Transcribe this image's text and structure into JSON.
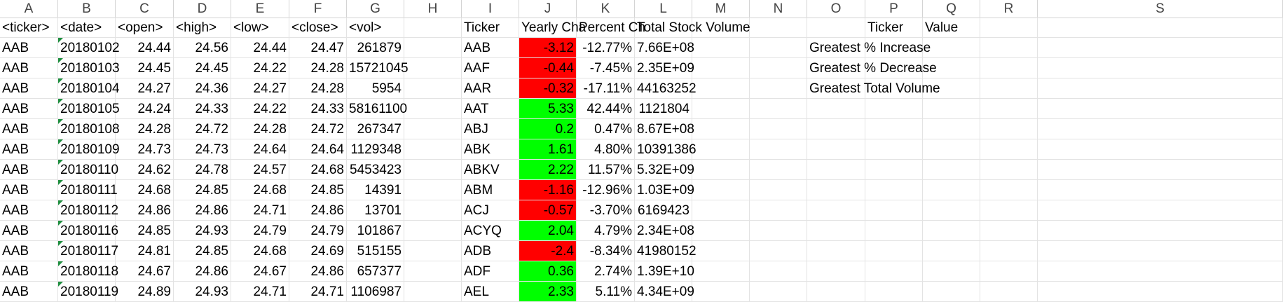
{
  "sheet": {
    "column_letters": [
      "A",
      "B",
      "C",
      "D",
      "E",
      "F",
      "G",
      "H",
      "I",
      "J",
      "K",
      "L",
      "M",
      "N",
      "O",
      "P",
      "Q",
      "R",
      "S"
    ],
    "headers": {
      "ticker": "<ticker>",
      "date": "<date>",
      "open": "<open>",
      "high": "<high>",
      "low": "<low>",
      "close": "<close>",
      "vol": "<vol>",
      "summary_ticker": "Ticker",
      "yearly_change": "Yearly Cha",
      "percent_change": "Percent Ch",
      "total_volume": "Total Stock Volume",
      "greatest_ticker": "Ticker",
      "greatest_value": "Value"
    },
    "raw_rows": [
      [
        "AAB",
        "20180102",
        "24.44",
        "24.56",
        "24.44",
        "24.47",
        "261879"
      ],
      [
        "AAB",
        "20180103",
        "24.45",
        "24.45",
        "24.22",
        "24.28",
        "15721045"
      ],
      [
        "AAB",
        "20180104",
        "24.27",
        "24.36",
        "24.27",
        "24.28",
        "5954"
      ],
      [
        "AAB",
        "20180105",
        "24.24",
        "24.33",
        "24.22",
        "24.33",
        "58161100"
      ],
      [
        "AAB",
        "20180108",
        "24.28",
        "24.72",
        "24.28",
        "24.72",
        "267347"
      ],
      [
        "AAB",
        "20180109",
        "24.73",
        "24.73",
        "24.64",
        "24.64",
        "1129348"
      ],
      [
        "AAB",
        "20180110",
        "24.62",
        "24.78",
        "24.57",
        "24.68",
        "5453423"
      ],
      [
        "AAB",
        "20180111",
        "24.68",
        "24.85",
        "24.68",
        "24.85",
        "14391"
      ],
      [
        "AAB",
        "20180112",
        "24.86",
        "24.86",
        "24.71",
        "24.86",
        "13701"
      ],
      [
        "AAB",
        "20180116",
        "24.85",
        "24.93",
        "24.79",
        "24.79",
        "101867"
      ],
      [
        "AAB",
        "20180117",
        "24.81",
        "24.85",
        "24.68",
        "24.69",
        "515155"
      ],
      [
        "AAB",
        "20180118",
        "24.67",
        "24.86",
        "24.67",
        "24.86",
        "657377"
      ],
      [
        "AAB",
        "20180119",
        "24.89",
        "24.93",
        "24.71",
        "24.71",
        "1106987"
      ]
    ],
    "summary_rows": [
      {
        "ticker": "AAB",
        "change": "-3.12",
        "pct": "-12.77%",
        "vol": "7.66E+08",
        "fill": "#ff0000"
      },
      {
        "ticker": "AAF",
        "change": "-0.44",
        "pct": "-7.45%",
        "vol": "2.35E+09",
        "fill": "#ff0000"
      },
      {
        "ticker": "AAR",
        "change": "-0.32",
        "pct": "-17.11%",
        "vol": "44163252",
        "fill": "#ff0000"
      },
      {
        "ticker": "AAT",
        "change": "5.33",
        "pct": "42.44%",
        "vol": "1121804",
        "fill": "#00ff00"
      },
      {
        "ticker": "ABJ",
        "change": "0.2",
        "pct": "0.47%",
        "vol": "8.67E+08",
        "fill": "#00ff00"
      },
      {
        "ticker": "ABK",
        "change": "1.61",
        "pct": "4.80%",
        "vol": "10391386",
        "fill": "#00ff00"
      },
      {
        "ticker": "ABKV",
        "change": "2.22",
        "pct": "11.57%",
        "vol": "5.32E+09",
        "fill": "#00ff00"
      },
      {
        "ticker": "ABM",
        "change": "-1.16",
        "pct": "-12.96%",
        "vol": "1.03E+09",
        "fill": "#ff0000"
      },
      {
        "ticker": "ACJ",
        "change": "-0.57",
        "pct": "-3.70%",
        "vol": "6169423",
        "fill": "#ff0000"
      },
      {
        "ticker": "ACYQ",
        "change": "2.04",
        "pct": "4.79%",
        "vol": "2.34E+08",
        "fill": "#00ff00"
      },
      {
        "ticker": "ADB",
        "change": "-2.4",
        "pct": "-8.34%",
        "vol": "41980152",
        "fill": "#ff0000"
      },
      {
        "ticker": "ADF",
        "change": "0.36",
        "pct": "2.74%",
        "vol": "1.39E+10",
        "fill": "#00ff00"
      },
      {
        "ticker": "AEL",
        "change": "2.33",
        "pct": "5.11%",
        "vol": "4.34E+09",
        "fill": "#00ff00"
      }
    ],
    "greatest_labels": [
      "Greatest % Increase",
      "Greatest % Decrease",
      "Greatest Total Volume"
    ],
    "colors": {
      "negative": "#ff0000",
      "positive": "#00ff00",
      "gridline": "#e3e3e3",
      "error_marker": "#1e8e3e"
    }
  }
}
